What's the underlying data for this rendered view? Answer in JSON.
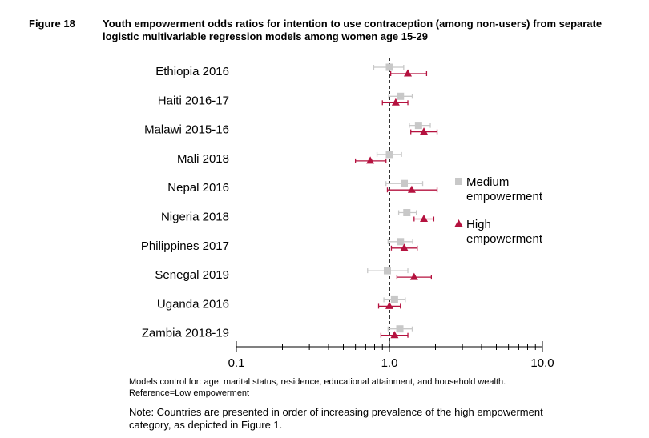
{
  "figure": {
    "label": "Figure 18",
    "title": "Youth empowerment odds ratios for intention to use contraception (among non-users) from separate logistic multivariable regression models among women age 15-29"
  },
  "chart_data": {
    "type": "scatter",
    "x_scale": "log",
    "xlim": [
      0.1,
      10.0
    ],
    "x_tick_labels": [
      "0.1",
      "1.0",
      "10.0"
    ],
    "reference_line": 1.0,
    "categories": [
      "Ethiopia 2016",
      "Haiti 2016-17",
      "Malawi 2015-16",
      "Mali 2018",
      "Nepal 2016",
      "Nigeria 2018",
      "Philippines 2017",
      "Senegal 2019",
      "Uganda 2016",
      "Zambia 2018-19"
    ],
    "series": [
      {
        "name": "Medium empowerment",
        "marker": "square",
        "color": "#c8c8c8",
        "points": [
          {
            "or": 1.0,
            "lo": 0.79,
            "hi": 1.24
          },
          {
            "or": 1.18,
            "lo": 0.99,
            "hi": 1.41
          },
          {
            "or": 1.55,
            "lo": 1.35,
            "hi": 1.85
          },
          {
            "or": 1.0,
            "lo": 0.83,
            "hi": 1.2
          },
          {
            "or": 1.25,
            "lo": 0.95,
            "hi": 1.65
          },
          {
            "or": 1.3,
            "lo": 1.15,
            "hi": 1.5
          },
          {
            "or": 1.18,
            "lo": 0.98,
            "hi": 1.42
          },
          {
            "or": 0.97,
            "lo": 0.72,
            "hi": 1.32
          },
          {
            "or": 1.08,
            "lo": 0.92,
            "hi": 1.27
          },
          {
            "or": 1.17,
            "lo": 0.98,
            "hi": 1.41
          }
        ]
      },
      {
        "name": "High empowerment",
        "marker": "triangle",
        "color": "#b5123f",
        "points": [
          {
            "or": 1.32,
            "lo": 1.02,
            "hi": 1.75
          },
          {
            "or": 1.1,
            "lo": 0.9,
            "hi": 1.32
          },
          {
            "or": 1.68,
            "lo": 1.38,
            "hi": 2.05
          },
          {
            "or": 0.75,
            "lo": 0.6,
            "hi": 0.95
          },
          {
            "or": 1.4,
            "lo": 0.97,
            "hi": 2.05
          },
          {
            "or": 1.68,
            "lo": 1.45,
            "hi": 1.95
          },
          {
            "or": 1.25,
            "lo": 1.03,
            "hi": 1.52
          },
          {
            "or": 1.45,
            "lo": 1.12,
            "hi": 1.88
          },
          {
            "or": 1.0,
            "lo": 0.85,
            "hi": 1.18
          },
          {
            "or": 1.08,
            "lo": 0.88,
            "hi": 1.32
          }
        ]
      }
    ],
    "legend": [
      "Medium empowerment",
      "High empowerment"
    ],
    "legend_position": "right",
    "grid": false
  },
  "footnotes": {
    "models": "Models control for: age, marital status, residence, educational attainment, and household wealth.",
    "reference": "Reference=Low empowerment",
    "note": "Note: Countries are presented in order of increasing prevalence of the high empowerment category, as depicted in Figure 1."
  }
}
